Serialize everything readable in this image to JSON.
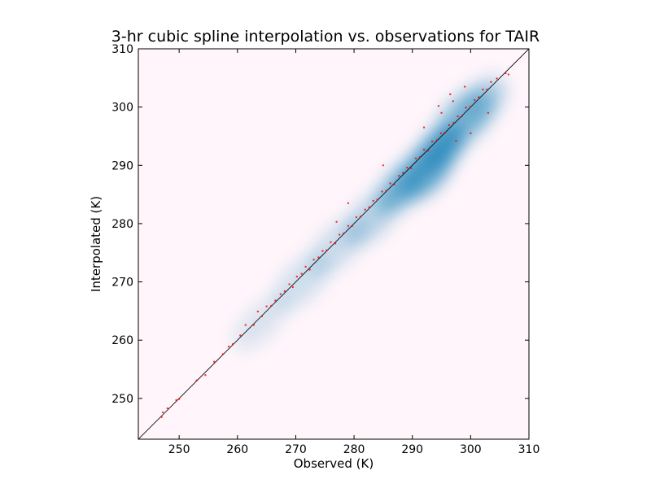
{
  "chart_data": {
    "type": "scatter",
    "title": "3-hr cubic spline interpolation vs. observations for TAIR",
    "xlabel": "Observed (K)",
    "ylabel": "Interpolated (K)",
    "xlim": [
      243,
      310
    ],
    "ylim": [
      243,
      310
    ],
    "x_ticks": [
      "250",
      "260",
      "270",
      "280",
      "290",
      "300",
      "310"
    ],
    "y_ticks": [
      "250",
      "260",
      "270",
      "280",
      "290",
      "300",
      "310"
    ],
    "x_tick_values": [
      250,
      260,
      270,
      280,
      290,
      300,
      310
    ],
    "y_tick_values": [
      250,
      260,
      270,
      280,
      290,
      300,
      310
    ],
    "grid": false,
    "reference_line": {
      "x": [
        243,
        310
      ],
      "y": [
        243,
        310
      ],
      "color": "#000000"
    },
    "density_background": "#fff5fa",
    "density_color": "#2b8cbe",
    "point_color": "#ff0000",
    "density_regions": [
      {
        "x": 264,
        "y": 263,
        "rx": 6,
        "ry": 2.5,
        "weight": 0.18
      },
      {
        "x": 271,
        "y": 270,
        "rx": 6,
        "ry": 3,
        "weight": 0.22
      },
      {
        "x": 277,
        "y": 276,
        "rx": 6,
        "ry": 3,
        "weight": 0.25
      },
      {
        "x": 283,
        "y": 281,
        "rx": 6,
        "ry": 3,
        "weight": 0.35
      },
      {
        "x": 288,
        "y": 286,
        "rx": 5,
        "ry": 3,
        "weight": 0.55
      },
      {
        "x": 292,
        "y": 289,
        "rx": 6,
        "ry": 3.5,
        "weight": 0.75
      },
      {
        "x": 295,
        "y": 293,
        "rx": 5,
        "ry": 3,
        "weight": 0.85
      },
      {
        "x": 299,
        "y": 298,
        "rx": 6,
        "ry": 3.5,
        "weight": 0.55
      },
      {
        "x": 302,
        "y": 301,
        "rx": 5,
        "ry": 3,
        "weight": 0.35
      }
    ],
    "scatter_samples": [
      [
        247,
        246.8
      ],
      [
        247.2,
        247.6
      ],
      [
        248,
        248.3
      ],
      [
        249.5,
        249.7
      ],
      [
        250,
        249.9
      ],
      [
        253,
        253.1
      ],
      [
        254.5,
        254
      ],
      [
        256,
        256.3
      ],
      [
        257.5,
        257.6
      ],
      [
        258.5,
        258.9
      ],
      [
        259.2,
        259.3
      ],
      [
        260.5,
        260.8
      ],
      [
        261.4,
        262.6
      ],
      [
        262.8,
        262.6
      ],
      [
        263.5,
        264.9
      ],
      [
        264.2,
        264.1
      ],
      [
        265,
        265.8
      ],
      [
        265.8,
        265.9
      ],
      [
        266.5,
        266.8
      ],
      [
        267.4,
        267.9
      ],
      [
        268.1,
        268.4
      ],
      [
        268.9,
        269.6
      ],
      [
        269.5,
        269.1
      ],
      [
        270.2,
        270.9
      ],
      [
        271,
        271.4
      ],
      [
        271.7,
        272.6
      ],
      [
        272.4,
        272.1
      ],
      [
        273.1,
        273.8
      ],
      [
        273.9,
        274.2
      ],
      [
        274.6,
        275.3
      ],
      [
        275.3,
        275.4
      ],
      [
        276,
        276.8
      ],
      [
        276.8,
        276.6
      ],
      [
        277.5,
        278.1
      ],
      [
        278.2,
        278.3
      ],
      [
        279,
        279.6
      ],
      [
        279.7,
        279.6
      ],
      [
        280.4,
        281.1
      ],
      [
        281.1,
        281.2
      ],
      [
        281.9,
        282.4
      ],
      [
        282.6,
        282.8
      ],
      [
        283.3,
        283.9
      ],
      [
        284,
        284.1
      ],
      [
        284.8,
        285.5
      ],
      [
        285.5,
        285.6
      ],
      [
        286.2,
        286.9
      ],
      [
        286.9,
        286.7
      ],
      [
        287.7,
        288.2
      ],
      [
        288.4,
        288.7
      ],
      [
        289.1,
        289.6
      ],
      [
        289.8,
        289.5
      ],
      [
        290.6,
        291.2
      ],
      [
        291.3,
        291.4
      ],
      [
        292,
        292.7
      ],
      [
        292.7,
        292.5
      ],
      [
        293.4,
        294.1
      ],
      [
        294.2,
        294.3
      ],
      [
        294.9,
        295.5
      ],
      [
        295.6,
        295.6
      ],
      [
        296.3,
        296.9
      ],
      [
        297.1,
        297.3
      ],
      [
        297.8,
        298.4
      ],
      [
        298.5,
        298.4
      ],
      [
        299.2,
        299.9
      ],
      [
        300,
        300.1
      ],
      [
        300.7,
        301.2
      ],
      [
        301.4,
        301.7
      ],
      [
        302.1,
        303
      ],
      [
        302.8,
        303
      ],
      [
        303.5,
        304.3
      ],
      [
        304.5,
        304.9
      ],
      [
        306,
        305.8
      ],
      [
        306.5,
        305.6
      ],
      [
        295,
        299
      ],
      [
        297,
        301
      ],
      [
        294.5,
        300.2
      ],
      [
        296.5,
        302.2
      ],
      [
        299,
        303.5
      ],
      [
        300,
        295.5
      ],
      [
        297.5,
        294.2
      ],
      [
        303,
        299
      ],
      [
        279,
        283.5
      ],
      [
        285,
        290
      ],
      [
        292,
        296.5
      ],
      [
        277,
        280.3
      ]
    ]
  }
}
